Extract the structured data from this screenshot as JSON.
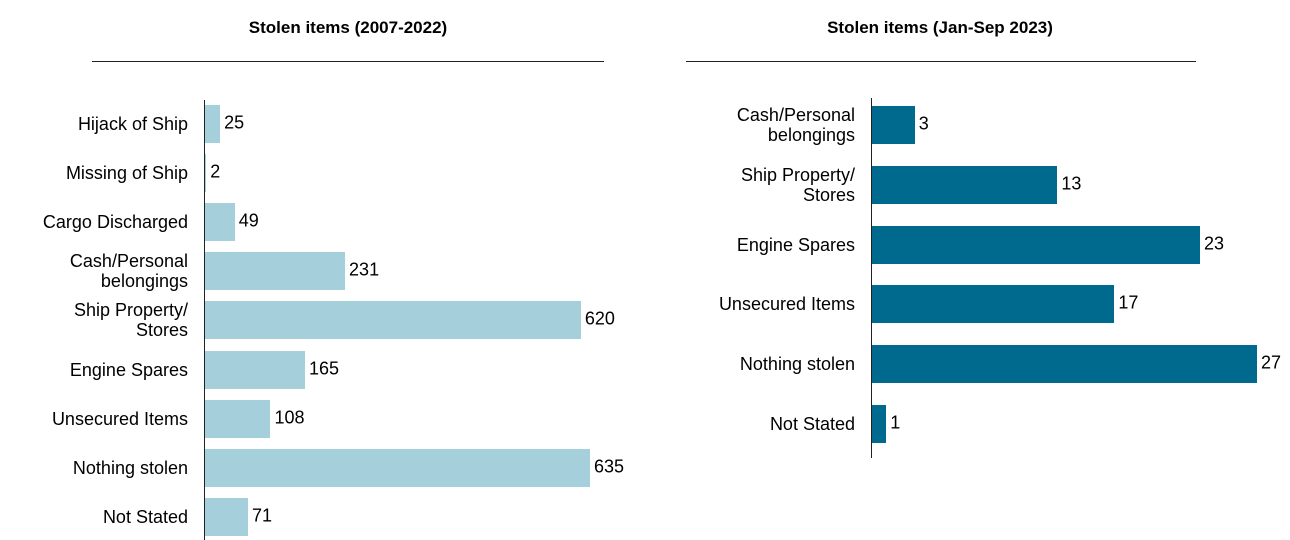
{
  "chart_data": [
    {
      "type": "bar",
      "orientation": "horizontal",
      "title": "Stolen items (2007-2022)",
      "categories": [
        "Hijack of Ship",
        "Missing of Ship",
        "Cargo Discharged",
        "Cash/Personal\nbelongings",
        "Ship Property/\nStores",
        "Engine Spares",
        "Unsecured Items",
        "Nothing stolen",
        "Not Stated"
      ],
      "values": [
        25,
        2,
        49,
        231,
        620,
        165,
        108,
        635,
        71
      ],
      "color": "#a6cfdc"
    },
    {
      "type": "bar",
      "orientation": "horizontal",
      "title": "Stolen items (Jan-Sep 2023)",
      "categories": [
        "Cash/Personal\nbelongings",
        "Ship Property/\nStores",
        "Engine Spares",
        "Unsecured Items",
        "Nothing stolen",
        "Not Stated"
      ],
      "values": [
        3,
        13,
        23,
        17,
        27,
        1
      ],
      "color": "#006a8e"
    }
  ]
}
